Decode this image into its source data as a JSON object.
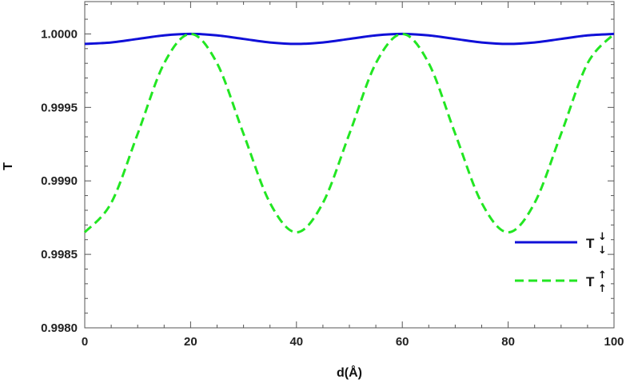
{
  "chart_data": {
    "type": "line",
    "title": "",
    "xlabel": "d(Å)",
    "ylabel": "T",
    "xlim": [
      0,
      100
    ],
    "ylim": [
      0.998,
      1.00022
    ],
    "x_ticks": [
      0,
      20,
      40,
      60,
      80,
      100
    ],
    "x_tick_labels": [
      "0",
      "20",
      "40",
      "60",
      "80",
      "100"
    ],
    "y_ticks": [
      0.998,
      0.9985,
      0.999,
      0.9995,
      1.0
    ],
    "y_tick_labels": [
      "0.9980",
      "0.9985",
      "0.9990",
      "0.9995",
      "1.0000"
    ],
    "grid": false,
    "legend_position": "right",
    "series": [
      {
        "label_main": "T",
        "label_arrows": [
          "↓",
          "↓"
        ],
        "color": "#1010d8",
        "style": "solid",
        "x": [
          0,
          5,
          10,
          15,
          20,
          25,
          30,
          35,
          40,
          45,
          50,
          55,
          60,
          65,
          70,
          75,
          80,
          85,
          90,
          95,
          100
        ],
        "y": [
          0.999932,
          0.999942,
          0.999966,
          0.99999,
          1.0,
          0.99999,
          0.999966,
          0.999942,
          0.999932,
          0.999942,
          0.999966,
          0.99999,
          1.0,
          0.99999,
          0.999966,
          0.999942,
          0.999932,
          0.999942,
          0.999966,
          0.99999,
          1.0
        ]
      },
      {
        "label_main": "T",
        "label_arrows": [
          "↑",
          "↑"
        ],
        "color": "#22e622",
        "style": "dashed",
        "x": [
          0,
          5,
          10,
          15,
          20,
          25,
          30,
          35,
          40,
          45,
          50,
          55,
          60,
          65,
          70,
          75,
          80,
          85,
          90,
          95,
          100
        ],
        "y": [
          0.99865,
          0.99885,
          0.99932,
          0.9998,
          1.0,
          0.9998,
          0.99932,
          0.99885,
          0.99865,
          0.99885,
          0.99932,
          0.9998,
          1.0,
          0.9998,
          0.99932,
          0.99885,
          0.99865,
          0.99885,
          0.99932,
          0.9998,
          1.0
        ]
      }
    ]
  }
}
